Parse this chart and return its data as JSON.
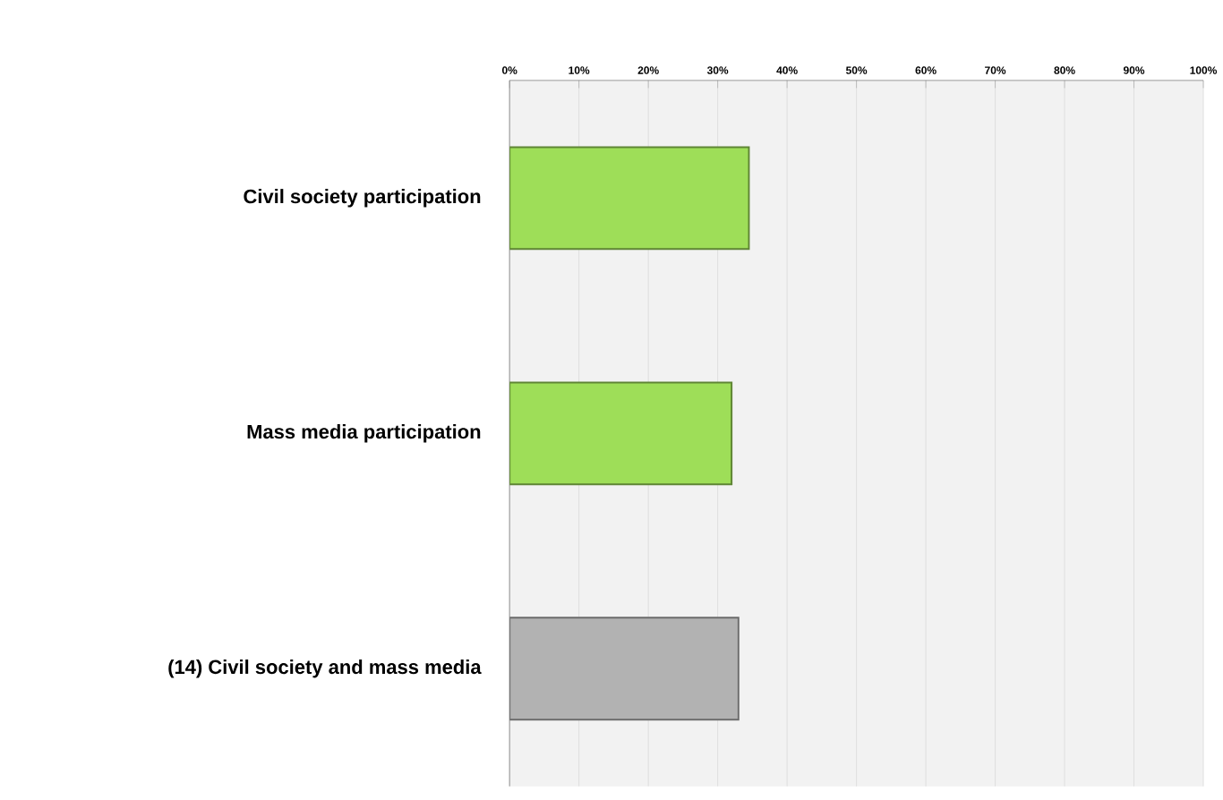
{
  "chart_data": {
    "type": "bar",
    "orientation": "horizontal",
    "categories": [
      "Civil society participation",
      "Mass media participation",
      "(14) Civil society and mass media"
    ],
    "values": [
      34.5,
      32,
      33
    ],
    "colors": [
      "#9ede58",
      "#9ede58",
      "#b2b2b2"
    ],
    "xlim": [
      0,
      100
    ],
    "xticks": [
      {
        "value": 0,
        "label": "0%"
      },
      {
        "value": 10,
        "label": "10%"
      },
      {
        "value": 20,
        "label": "20%"
      },
      {
        "value": 30,
        "label": "30%"
      },
      {
        "value": 40,
        "label": "40%"
      },
      {
        "value": 50,
        "label": "50%"
      },
      {
        "value": 60,
        "label": "60%"
      },
      {
        "value": 70,
        "label": "70%"
      },
      {
        "value": 80,
        "label": "80%"
      },
      {
        "value": 90,
        "label": "90%"
      },
      {
        "value": 100,
        "label": "100%"
      }
    ],
    "grid": "x"
  }
}
